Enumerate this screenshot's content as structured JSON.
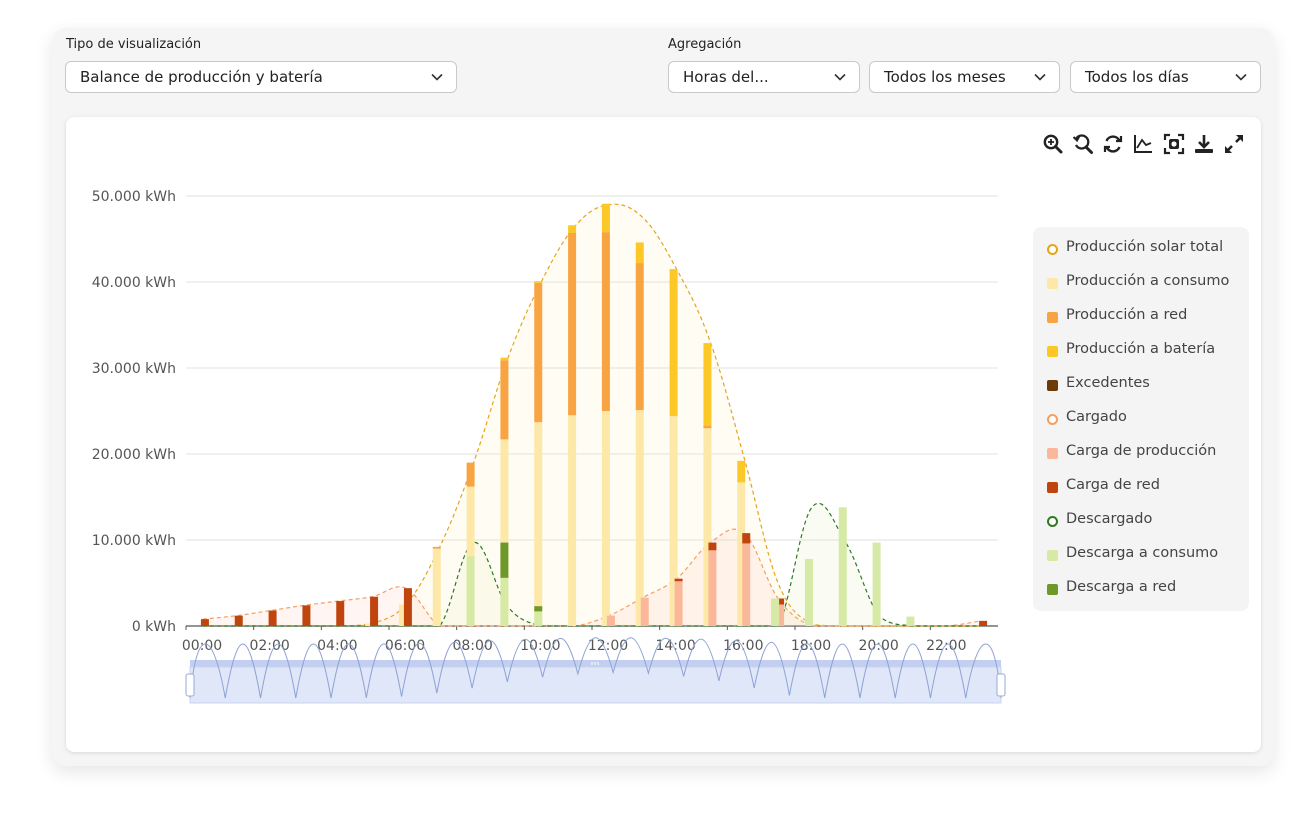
{
  "controls": {
    "visualization_label": "Tipo de visualización",
    "visualization_value": "Balance de producción y batería",
    "aggregation_label": "Agregación",
    "hours_value": "Horas del...",
    "months_value": "Todos los meses",
    "days_value": "Todos los días"
  },
  "toolbar": [
    "zoom-in-icon",
    "zoom-reset-icon",
    "refresh-icon",
    "line-chart-icon",
    "screenshot-icon",
    "download-icon",
    "fullscreen-icon"
  ],
  "colors": {
    "solar_total": "#e7a31b",
    "prod_consumo": "#fde8a7",
    "prod_red": "#f8a443",
    "prod_bateria": "#fcc828",
    "excedentes": "#6b3a06",
    "cargado": "#f59e62",
    "carga_produccion": "#fbb79a",
    "carga_red": "#c0440e",
    "descargado": "#2d7a20",
    "descarga_consumo": "#d6eaa6",
    "descarga_red": "#6e9828",
    "slider_fill": "#dfe7f8",
    "slider_bar": "#c2cff0"
  },
  "chart_data": {
    "type": "bar",
    "stacked": true,
    "y_tick_labels": [
      "0 kWh",
      "10.000 kWh",
      "20.000 kWh",
      "30.000 kWh",
      "40.000 kWh",
      "50.000 kWh"
    ],
    "ylim": [
      0,
      50000
    ],
    "x_tick_labels": [
      "00:00",
      "02:00",
      "04:00",
      "06:00",
      "08:00",
      "10:00",
      "12:00",
      "14:00",
      "16:00",
      "18:00",
      "20:00",
      "22:00"
    ],
    "hours": [
      0,
      1,
      2,
      3,
      4,
      5,
      6,
      7,
      8,
      9,
      10,
      11,
      12,
      13,
      14,
      15,
      16,
      17,
      18,
      19,
      20,
      21,
      22,
      23
    ],
    "legend_position": "right",
    "grid": true,
    "series": [
      {
        "name": "Producción solar total",
        "kind": "line",
        "color_key": "solar_total",
        "values": [
          0,
          0,
          0,
          0,
          0,
          300,
          2500,
          9200,
          19000,
          31000,
          40000,
          46500,
          49000,
          47500,
          41500,
          33000,
          19500,
          5000,
          200,
          0,
          0,
          0,
          0,
          0
        ]
      },
      {
        "name": "Producción a consumo",
        "kind": "bar",
        "stack": "prod",
        "color_key": "prod_consumo",
        "values": [
          0,
          0,
          0,
          0,
          0,
          300,
          2500,
          9000,
          16200,
          21700,
          23700,
          24500,
          25000,
          25100,
          24400,
          23000,
          16700,
          0,
          0,
          0,
          0,
          0,
          0,
          0
        ]
      },
      {
        "name": "Producción a red",
        "kind": "bar",
        "stack": "prod",
        "color_key": "prod_red",
        "values": [
          0,
          0,
          0,
          0,
          0,
          0,
          0,
          200,
          2800,
          9200,
          16200,
          21200,
          20800,
          17100,
          0,
          300,
          0,
          0,
          0,
          0,
          0,
          0,
          0,
          0
        ]
      },
      {
        "name": "Producción a batería",
        "kind": "bar",
        "stack": "prod",
        "color_key": "prod_bateria",
        "values": [
          0,
          0,
          0,
          0,
          0,
          0,
          0,
          0,
          0,
          300,
          200,
          900,
          3300,
          2400,
          17100,
          9600,
          2500,
          0,
          0,
          0,
          0,
          0,
          0,
          0
        ]
      },
      {
        "name": "Excedentes",
        "kind": "bar",
        "stack": "prod",
        "color_key": "excedentes",
        "values": [
          0,
          0,
          0,
          0,
          0,
          0,
          0,
          0,
          0,
          0,
          0,
          0,
          0,
          0,
          0,
          0,
          0,
          0,
          0,
          0,
          0,
          0,
          0,
          0
        ]
      },
      {
        "name": "Cargado",
        "kind": "line",
        "color_key": "cargado",
        "values": [
          800,
          1200,
          1800,
          2400,
          2900,
          3400,
          4400,
          0,
          0,
          0,
          0,
          0,
          1200,
          3300,
          5500,
          9700,
          10800,
          3200,
          0,
          0,
          0,
          0,
          0,
          600
        ]
      },
      {
        "name": "Carga de producción",
        "kind": "bar",
        "stack": "charge",
        "color_key": "carga_produccion",
        "values": [
          0,
          0,
          0,
          0,
          0,
          0,
          0,
          0,
          0,
          0,
          0,
          0,
          1200,
          3300,
          5200,
          8800,
          9600,
          2500,
          0,
          0,
          0,
          0,
          0,
          0
        ]
      },
      {
        "name": "Carga de red",
        "kind": "bar",
        "stack": "charge",
        "color_key": "carga_red",
        "values": [
          800,
          1200,
          1800,
          2400,
          2900,
          3400,
          4400,
          0,
          0,
          0,
          0,
          0,
          0,
          0,
          300,
          900,
          1200,
          700,
          0,
          0,
          0,
          0,
          0,
          600
        ]
      },
      {
        "name": "Descargado",
        "kind": "line",
        "color_key": "descargado",
        "values": [
          0,
          0,
          0,
          0,
          0,
          0,
          0,
          0,
          9700,
          2300,
          0,
          0,
          0,
          0,
          0,
          0,
          0,
          0,
          13800,
          9700,
          1100,
          0,
          0,
          0
        ]
      },
      {
        "name": "Descarga a consumo",
        "kind": "bar",
        "stack": "dis",
        "color_key": "descarga_consumo",
        "values": [
          0,
          0,
          0,
          0,
          0,
          0,
          0,
          0,
          8100,
          5600,
          1700,
          0,
          0,
          0,
          0,
          0,
          0,
          3200,
          7800,
          13800,
          9700,
          1100,
          0,
          0
        ]
      },
      {
        "name": "Descarga a red",
        "kind": "bar",
        "stack": "dis",
        "color_key": "descarga_red",
        "values": [
          0,
          0,
          0,
          0,
          0,
          0,
          0,
          0,
          0,
          4100,
          600,
          0,
          0,
          0,
          0,
          0,
          0,
          0,
          0,
          0,
          0,
          0,
          0,
          0
        ]
      }
    ]
  }
}
